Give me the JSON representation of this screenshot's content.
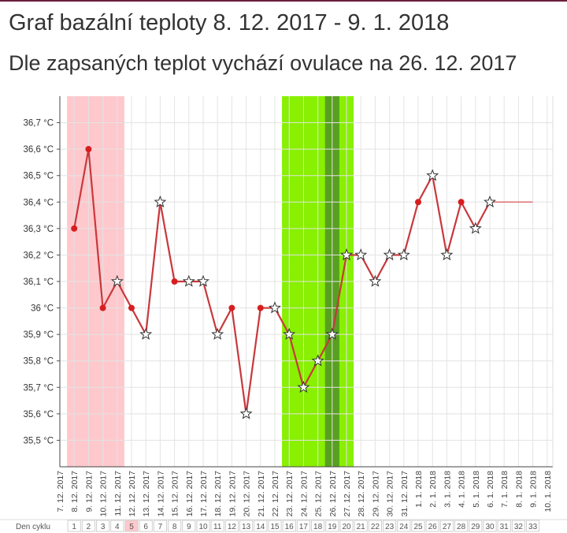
{
  "header": {
    "title": "Graf bazální teploty 8. 12. 2017 - 9. 1. 2018",
    "subtitle": "Dle zapsaných teplot vychází ovulace na 26. 12. 2017"
  },
  "colors": {
    "line": "#c8383c",
    "dot": "#d81e1e",
    "period": "#ffc8cc",
    "fertile": "#88f000",
    "ovulation": "#58a020",
    "projection": "#e07070",
    "grid": "#e3e3e3",
    "accent_bar": "#6b1e3c"
  },
  "chart_data": {
    "type": "line",
    "y_unit": "°C",
    "ylim": [
      35.4,
      36.8
    ],
    "y_ticks": [
      {
        "v": 35.5,
        "label": "35,5 °C"
      },
      {
        "v": 35.6,
        "label": "35,6 °C"
      },
      {
        "v": 35.7,
        "label": "35,7 °C"
      },
      {
        "v": 35.8,
        "label": "35,8 °C"
      },
      {
        "v": 35.9,
        "label": "35,9 °C"
      },
      {
        "v": 36.0,
        "label": "36 °C"
      },
      {
        "v": 36.1,
        "label": "36,1 °C"
      },
      {
        "v": 36.2,
        "label": "36,2 °C"
      },
      {
        "v": 36.3,
        "label": "36,3 °C"
      },
      {
        "v": 36.4,
        "label": "36,4 °C"
      },
      {
        "v": 36.5,
        "label": "36,5 °C"
      },
      {
        "v": 36.6,
        "label": "36,6 °C"
      },
      {
        "v": 36.7,
        "label": "36,7 °C"
      }
    ],
    "dates": [
      "7. 12. 2017",
      "8. 12. 2017",
      "9. 12. 2017",
      "10. 12. 2017",
      "11. 12. 2017",
      "12. 12. 2017",
      "13. 12. 2017",
      "14. 12. 2017",
      "15. 12. 2017",
      "16. 12. 2017",
      "17. 12. 2017",
      "18. 12. 2017",
      "19. 12. 2017",
      "20. 12. 2017",
      "21. 12. 2017",
      "22. 12. 2017",
      "23. 12. 2017",
      "24. 12. 2017",
      "25. 12. 2017",
      "26. 12. 2017",
      "27. 12. 2017",
      "28. 12. 2017",
      "29. 12. 2017",
      "30. 12. 2017",
      "31. 12. 2017",
      "1. 1. 2018",
      "2. 1. 2018",
      "3. 1. 2018",
      "4. 1. 2018",
      "5. 1. 2018",
      "6. 1. 2018",
      "7. 1. 2018",
      "8. 1. 2018",
      "9. 1. 2018",
      "10. 1. 2018"
    ],
    "cycle_label": "Den cyklu",
    "cycle_days": [
      "1",
      "2",
      "3",
      "4",
      "5",
      "6",
      "7",
      "8",
      "9",
      "10",
      "11",
      "12",
      "13",
      "14",
      "15",
      "16",
      "17",
      "18",
      "19",
      "20",
      "21",
      "22",
      "23",
      "24",
      "25",
      "26",
      "27",
      "28",
      "29",
      "30",
      "31",
      "32",
      "33"
    ],
    "highlighted_cycle_day": "5",
    "series": [
      {
        "values": [
          {
            "date": "8. 12. 2017",
            "temp": 36.3,
            "marker": "dot"
          },
          {
            "date": "9. 12. 2017",
            "temp": 36.6,
            "marker": "dot"
          },
          {
            "date": "10. 12. 2017",
            "temp": 36.0,
            "marker": "dot"
          },
          {
            "date": "11. 12. 2017",
            "temp": 36.1,
            "marker": "star"
          },
          {
            "date": "12. 12. 2017",
            "temp": 36.0,
            "marker": "dot"
          },
          {
            "date": "13. 12. 2017",
            "temp": 35.9,
            "marker": "star"
          },
          {
            "date": "14. 12. 2017",
            "temp": 36.4,
            "marker": "star"
          },
          {
            "date": "15. 12. 2017",
            "temp": 36.1,
            "marker": "dot"
          },
          {
            "date": "16. 12. 2017",
            "temp": 36.1,
            "marker": "star"
          },
          {
            "date": "17. 12. 2017",
            "temp": 36.1,
            "marker": "star"
          },
          {
            "date": "18. 12. 2017",
            "temp": 35.9,
            "marker": "star"
          },
          {
            "date": "19. 12. 2017",
            "temp": 36.0,
            "marker": "dot"
          },
          {
            "date": "20. 12. 2017",
            "temp": 35.6,
            "marker": "star"
          },
          {
            "date": "21. 12. 2017",
            "temp": 36.0,
            "marker": "dot"
          },
          {
            "date": "22. 12. 2017",
            "temp": 36.0,
            "marker": "star"
          },
          {
            "date": "23. 12. 2017",
            "temp": 35.9,
            "marker": "star"
          },
          {
            "date": "24. 12. 2017",
            "temp": 35.7,
            "marker": "star"
          },
          {
            "date": "25. 12. 2017",
            "temp": 35.8,
            "marker": "star"
          },
          {
            "date": "26. 12. 2017",
            "temp": 35.9,
            "marker": "star"
          },
          {
            "date": "27. 12. 2017",
            "temp": 36.2,
            "marker": "star"
          },
          {
            "date": "28. 12. 2017",
            "temp": 36.2,
            "marker": "star"
          },
          {
            "date": "29. 12. 2017",
            "temp": 36.1,
            "marker": "star"
          },
          {
            "date": "30. 12. 2017",
            "temp": 36.2,
            "marker": "star"
          },
          {
            "date": "31. 12. 2017",
            "temp": 36.2,
            "marker": "star"
          },
          {
            "date": "1. 1. 2018",
            "temp": 36.4,
            "marker": "dot"
          },
          {
            "date": "2. 1. 2018",
            "temp": 36.5,
            "marker": "star"
          },
          {
            "date": "3. 1. 2018",
            "temp": 36.2,
            "marker": "star"
          },
          {
            "date": "4. 1. 2018",
            "temp": 36.4,
            "marker": "dot"
          },
          {
            "date": "5. 1. 2018",
            "temp": 36.3,
            "marker": "star"
          },
          {
            "date": "6. 1. 2018",
            "temp": 36.4,
            "marker": "star"
          }
        ]
      }
    ],
    "projection": {
      "from": "6. 1. 2018",
      "to": "9. 1. 2018",
      "temp": 36.4
    },
    "bands": [
      {
        "type": "period",
        "from": "7. 12. 2017",
        "to": "11. 12. 2017"
      },
      {
        "type": "fertile",
        "from": "22. 12. 2017",
        "to": "27. 12. 2017"
      },
      {
        "type": "ovulation",
        "from": "25. 12. 2017",
        "to": "26. 12. 2017"
      }
    ],
    "grid": true,
    "legend": "none"
  }
}
